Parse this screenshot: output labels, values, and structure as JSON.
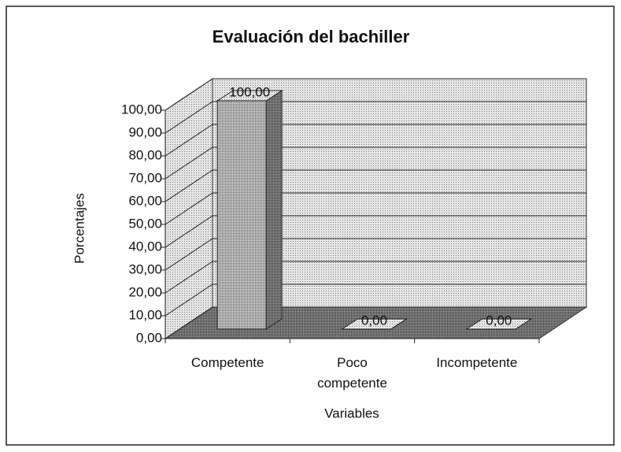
{
  "chart_data": {
    "type": "bar3d",
    "title": "Evaluación del bachiller",
    "categories": [
      "Competente",
      "Poco competente",
      "Incompetente"
    ],
    "values": [
      100,
      0,
      0
    ],
    "value_labels": [
      "100,00",
      "0,00",
      "0,00"
    ],
    "x_label": "Variables",
    "y_label": "Porcentajes",
    "color": "#cfcfcf",
    "ylim": [
      0,
      100
    ],
    "yticks": [
      {
        "value": 0,
        "label": "0,00"
      },
      {
        "value": 10,
        "label": "10,00"
      },
      {
        "value": 20,
        "label": "20,00"
      },
      {
        "value": 30,
        "label": "30,00"
      },
      {
        "value": 40,
        "label": "40,00"
      },
      {
        "value": 50,
        "label": "50,00"
      },
      {
        "value": 60,
        "label": "60,00"
      },
      {
        "value": 70,
        "label": "70,00"
      },
      {
        "value": 80,
        "label": "80,00"
      },
      {
        "value": 90,
        "label": "90,00"
      },
      {
        "value": 100,
        "label": "100,00"
      }
    ],
    "grid": true
  }
}
